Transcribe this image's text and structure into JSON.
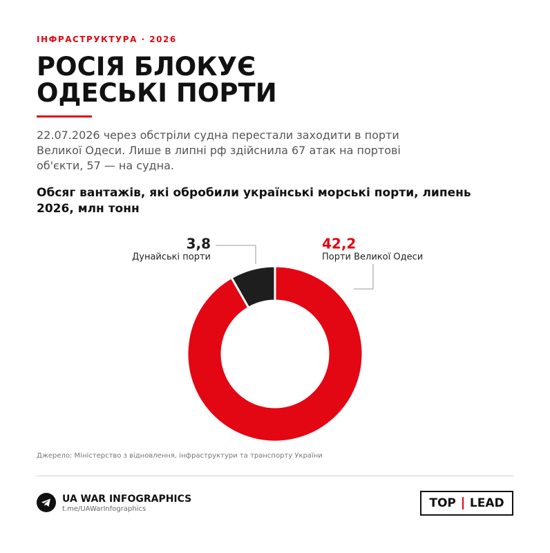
{
  "header": {
    "kicker": "ІНФРАСТРУКТУРА · 2026",
    "title_lines": [
      "РОСІЯ БЛОКУЄ",
      "ОДЕСЬКІ ПОРТИ"
    ],
    "description": "22.07.2026 через обстріли судна перестали заходити в порти Великої Одеси. Лише в липні рф здійснила 67 атак на портові об'єкти, 57 — на судна."
  },
  "chart_data": {
    "type": "donut",
    "title": "Обсяг вантажів, які обробили українські морські порти, липень 2026, млн тонн",
    "categories": [
      "Дунайські порти",
      "Порти Великої Одеси"
    ],
    "values": [
      3.8,
      42.2
    ],
    "value_labels": [
      "3,8",
      "42,2"
    ],
    "colors": [
      "#1e1e1e",
      "#e30613"
    ]
  },
  "footer": {
    "source": "Джерело: Міністерство з відновлення, інфраструктури та транспорту України",
    "brand": "UA WAR INFOGRAPHICS",
    "link": "t.me/UAWarInfographics",
    "partner_left": "TOP",
    "partner_right": "LEAD"
  }
}
